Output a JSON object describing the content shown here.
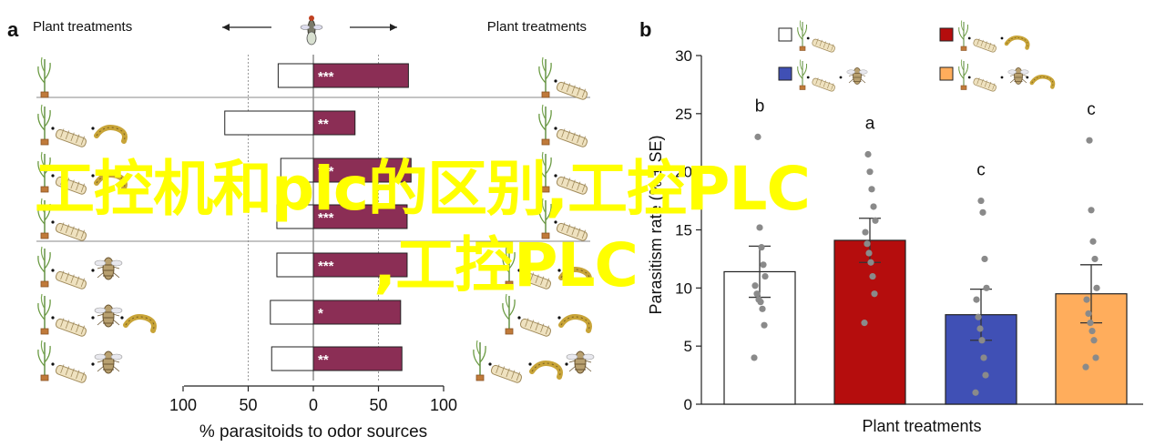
{
  "panel_a": {
    "label": "a",
    "left_header": "Plant treatments",
    "right_header": "Plant treatments",
    "colors": {
      "bar_left": "#ffffff",
      "bar_right": "#8b2e55",
      "stroke": "#222222",
      "grid": "#999999"
    },
    "chart_data": {
      "type": "bar",
      "orientation": "horizontal-diverging",
      "xlabel": "% parasitoids to odor sources",
      "xlim": [
        -100,
        100
      ],
      "xticks": [
        -100,
        -50,
        0,
        50,
        100
      ],
      "xtick_labels": [
        "100",
        "50",
        "0",
        "50",
        "100"
      ],
      "rows": [
        {
          "left": 27,
          "right": 73,
          "sig": "***"
        },
        {
          "left": 68,
          "right": 32,
          "sig": "**"
        },
        {
          "left": 25,
          "right": 75,
          "sig": "***"
        },
        {
          "left": 28,
          "right": 72,
          "sig": "***"
        },
        {
          "left": 28,
          "right": 72,
          "sig": "***"
        },
        {
          "left": 33,
          "right": 67,
          "sig": "*"
        },
        {
          "left": 32,
          "right": 68,
          "sig": "**"
        }
      ]
    }
  },
  "panel_b": {
    "label": "b",
    "colors": {
      "stroke": "#222222",
      "point": "#8a8a8a",
      "errbar": "#333333"
    },
    "chart_data": {
      "type": "bar",
      "ylabel": "Parasitism rate (% ± SE)",
      "xlabel": "Plant treatments",
      "ylim": [
        0,
        30
      ],
      "yticks": [
        0,
        5,
        10,
        15,
        20,
        25,
        30
      ],
      "grid": false,
      "legend_position": "top",
      "bars": [
        {
          "value": 11.4,
          "se": 2.2,
          "letter": "b",
          "color": "#ffffff",
          "points": [
            4.0,
            6.8,
            8.2,
            8.8,
            9.0,
            9.5,
            10.2,
            11.0,
            12.0,
            13.5,
            15.2,
            23.0
          ]
        },
        {
          "value": 14.1,
          "se": 1.9,
          "letter": "a",
          "color": "#b50d0d",
          "points": [
            7.0,
            9.5,
            11.0,
            12.2,
            13.0,
            13.8,
            14.8,
            15.8,
            17.0,
            18.5,
            20.0,
            21.5
          ]
        },
        {
          "value": 7.7,
          "se": 2.2,
          "letter": "c",
          "color": "#4050b5",
          "points": [
            1.0,
            2.5,
            4.0,
            5.5,
            6.5,
            7.5,
            9.0,
            10.0,
            12.5,
            16.5,
            17.5
          ]
        },
        {
          "value": 9.5,
          "se": 2.5,
          "letter": "c",
          "color": "#ffad5c",
          "points": [
            3.2,
            4.0,
            5.5,
            6.3,
            7.0,
            7.8,
            9.0,
            10.0,
            12.5,
            14.0,
            16.7,
            22.7
          ]
        }
      ]
    }
  },
  "overlay": {
    "line1": "工控机和plc的区别,工控PLC",
    "line2": ",工控PLC",
    "color": "#ffff00"
  }
}
